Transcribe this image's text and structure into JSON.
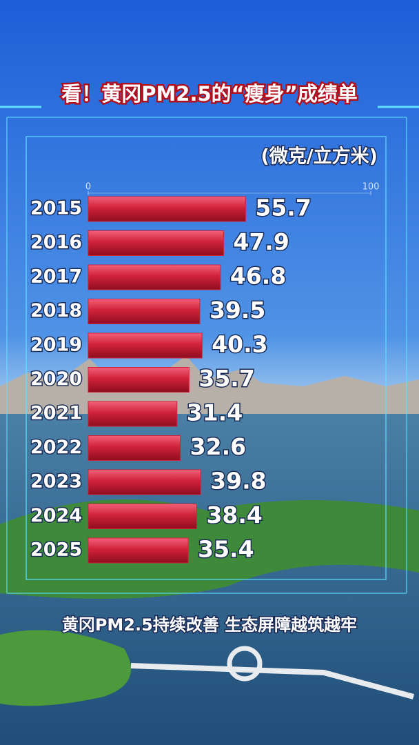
{
  "chart_data": {
    "type": "bar",
    "orientation": "horizontal",
    "title": "看！黄冈PM2.5的“瘦身”成绩单",
    "unit_label": "(微克/立方米)",
    "subtitle": "黄冈PM2.5持续改善 生态屏障越筑越牢",
    "categories": [
      "2015",
      "2016",
      "2017",
      "2018",
      "2019",
      "2020",
      "2021",
      "2022",
      "2023",
      "2024",
      "2025"
    ],
    "values": [
      55.7,
      47.9,
      46.8,
      39.5,
      40.3,
      35.7,
      31.4,
      32.6,
      39.8,
      38.4,
      35.4
    ],
    "color": "#d0223a",
    "xlim": [
      0,
      100
    ],
    "xticks": [
      0,
      100
    ]
  }
}
